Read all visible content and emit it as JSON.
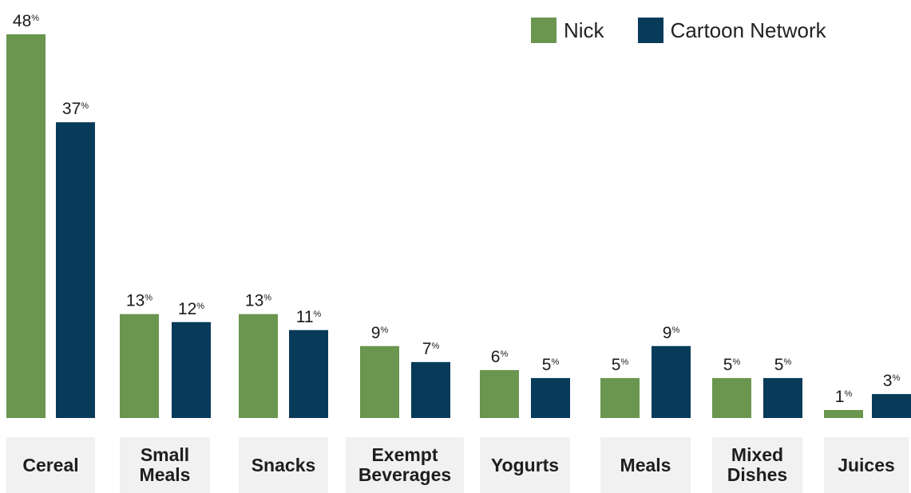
{
  "chart_data": {
    "type": "bar",
    "title": "",
    "xlabel": "",
    "ylabel": "",
    "unit": "%",
    "ylim": [
      0,
      48
    ],
    "grid": false,
    "legend_position": "top-right",
    "categories": [
      "Cereal",
      "Small\nMeals",
      "Snacks",
      "Exempt\nBeverages",
      "Yogurts",
      "Meals",
      "Mixed\nDishes",
      "Juices"
    ],
    "series": [
      {
        "name": "Nick",
        "color": "#6a9650",
        "values": [
          48,
          13,
          13,
          9,
          6,
          5,
          5,
          1
        ]
      },
      {
        "name": "Cartoon Network",
        "color": "#083a5a",
        "values": [
          37,
          12,
          11,
          7,
          5,
          9,
          5,
          3
        ]
      }
    ]
  }
}
